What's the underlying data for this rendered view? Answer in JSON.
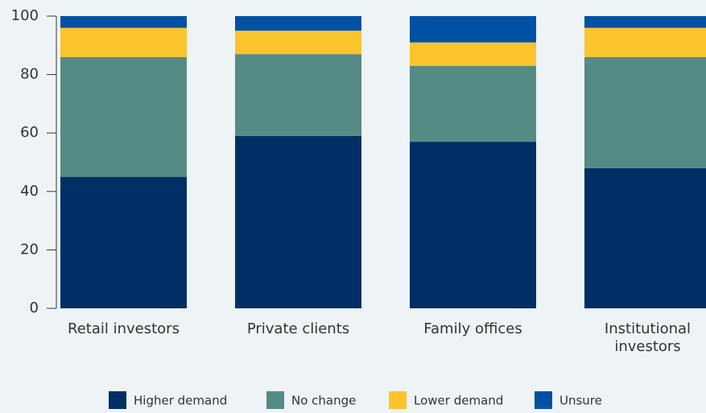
{
  "chart_data": {
    "type": "stacked_bar",
    "categories": [
      "Retail investors",
      "Private clients",
      "Family offices",
      "Institutional investors"
    ],
    "series": [
      {
        "name": "Higher demand",
        "color": "#002f66",
        "values": [
          45,
          59,
          57,
          48
        ]
      },
      {
        "name": "No change",
        "color": "#568a84",
        "values": [
          41,
          28,
          26,
          38
        ]
      },
      {
        "name": "Lower demand",
        "color": "#fcc42c",
        "values": [
          10,
          8,
          8,
          10
        ]
      },
      {
        "name": "Unsure",
        "color": "#0051a3",
        "values": [
          4,
          5,
          9,
          4
        ]
      }
    ],
    "ylim": [
      0,
      100
    ],
    "yticks": [
      0,
      20,
      40,
      60,
      80,
      100
    ],
    "legend": "bottom"
  }
}
